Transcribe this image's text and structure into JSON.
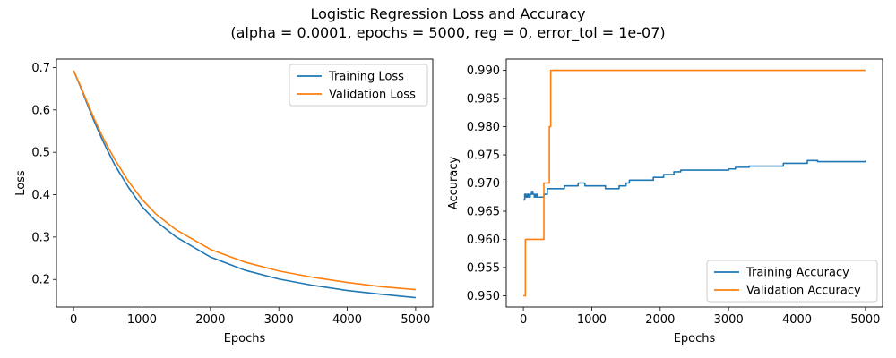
{
  "figure": {
    "title_line1": "Logistic Regression Loss and Accuracy",
    "title_line2": "(alpha = 0.0001, epochs = 5000, reg = 0, error_tol = 1e-07)"
  },
  "colors": {
    "blue": "#1f77b4",
    "orange": "#ff7f0e"
  },
  "chart_data": [
    {
      "type": "line",
      "xlabel": "Epochs",
      "ylabel": "Loss",
      "xlim": [
        -250,
        5250
      ],
      "ylim": [
        0.135,
        0.72
      ],
      "xticks": [
        0,
        1000,
        2000,
        3000,
        4000,
        5000
      ],
      "yticks": [
        0.2,
        0.3,
        0.4,
        0.5,
        0.6,
        0.7
      ],
      "ytick_labels": [
        "0.2",
        "0.3",
        "0.4",
        "0.5",
        "0.6",
        "0.7"
      ],
      "legend_position": "top-right",
      "series": [
        {
          "name": "Training Loss",
          "color": "#1f77b4",
          "x": [
            0,
            100,
            200,
            300,
            400,
            500,
            600,
            800,
            1000,
            1200,
            1500,
            2000,
            2500,
            3000,
            3500,
            4000,
            4500,
            5000
          ],
          "y": [
            0.693,
            0.655,
            0.614,
            0.574,
            0.537,
            0.503,
            0.471,
            0.418,
            0.372,
            0.338,
            0.3,
            0.253,
            0.222,
            0.201,
            0.186,
            0.174,
            0.165,
            0.157
          ]
        },
        {
          "name": "Validation Loss",
          "color": "#ff7f0e",
          "x": [
            0,
            100,
            200,
            300,
            400,
            500,
            600,
            800,
            1000,
            1200,
            1500,
            2000,
            2500,
            3000,
            3500,
            4000,
            4500,
            5000
          ],
          "y": [
            0.693,
            0.657,
            0.618,
            0.58,
            0.545,
            0.513,
            0.484,
            0.432,
            0.389,
            0.355,
            0.317,
            0.271,
            0.241,
            0.22,
            0.205,
            0.193,
            0.183,
            0.176
          ]
        }
      ]
    },
    {
      "type": "line",
      "xlabel": "Epochs",
      "ylabel": "Accuracy",
      "xlim": [
        -250,
        5250
      ],
      "ylim": [
        0.948,
        0.992
      ],
      "xticks": [
        0,
        1000,
        2000,
        3000,
        4000,
        5000
      ],
      "yticks": [
        0.95,
        0.955,
        0.96,
        0.965,
        0.97,
        0.975,
        0.98,
        0.985,
        0.99
      ],
      "ytick_labels": [
        "0.950",
        "0.955",
        "0.960",
        "0.965",
        "0.970",
        "0.975",
        "0.980",
        "0.985",
        "0.990"
      ],
      "legend_position": "bottom-right",
      "series": [
        {
          "name": "Training Accuracy",
          "color": "#1f77b4",
          "step": true,
          "x": [
            0,
            20,
            40,
            60,
            80,
            100,
            120,
            140,
            160,
            180,
            200,
            250,
            300,
            350,
            400,
            500,
            600,
            700,
            800,
            900,
            1000,
            1100,
            1200,
            1300,
            1400,
            1500,
            1550,
            1700,
            1900,
            2050,
            2200,
            2300,
            2500,
            3000,
            3100,
            3300,
            3600,
            3800,
            4000,
            4150,
            4300,
            4500,
            5000
          ],
          "y": [
            0.967,
            0.968,
            0.9675,
            0.968,
            0.9675,
            0.968,
            0.9685,
            0.968,
            0.9675,
            0.968,
            0.9675,
            0.9675,
            0.968,
            0.969,
            0.969,
            0.969,
            0.9695,
            0.9695,
            0.97,
            0.9695,
            0.9695,
            0.9695,
            0.969,
            0.969,
            0.9695,
            0.97,
            0.9705,
            0.9705,
            0.971,
            0.9715,
            0.972,
            0.9723,
            0.9723,
            0.9725,
            0.9728,
            0.973,
            0.973,
            0.9735,
            0.9735,
            0.974,
            0.9738,
            0.9738,
            0.974
          ]
        },
        {
          "name": "Validation Accuracy",
          "color": "#ff7f0e",
          "step": true,
          "x": [
            0,
            30,
            300,
            330,
            380,
            400,
            5000
          ],
          "y": [
            0.95,
            0.96,
            0.97,
            0.97,
            0.98,
            0.99,
            0.99
          ]
        }
      ]
    }
  ]
}
